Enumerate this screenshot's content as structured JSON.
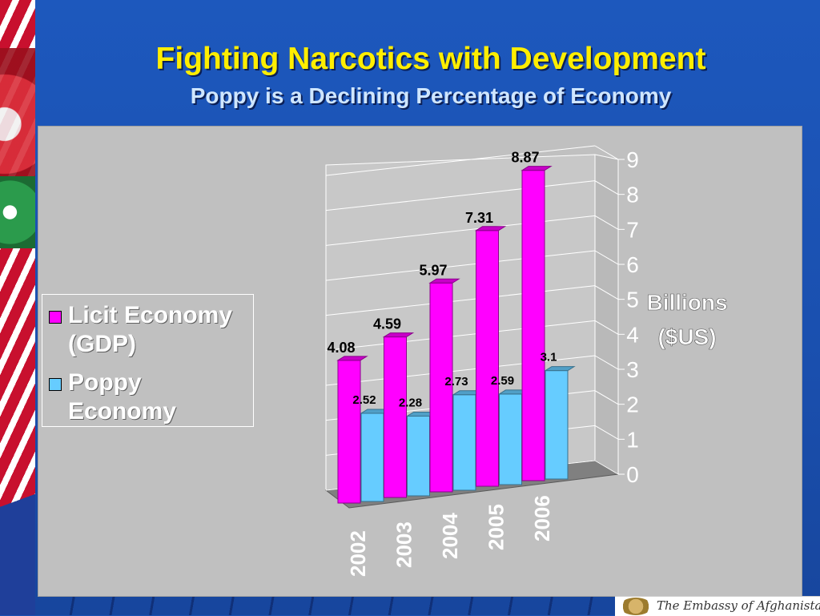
{
  "slide": {
    "title": "Fighting Narcotics with Development",
    "subtitle": "Poppy is a Declining Percentage of Economy",
    "footer_text": "The Embassy of Afghanistan"
  },
  "legend": {
    "items": [
      {
        "label": "Licit Economy (GDP)",
        "color": "#ff00ff"
      },
      {
        "label": "Poppy Economy",
        "color": "#66ccff"
      }
    ]
  },
  "chart_data": {
    "type": "bar",
    "categories": [
      "2002",
      "2003",
      "2004",
      "2005",
      "2006"
    ],
    "series": [
      {
        "name": "Licit Economy (GDP)",
        "values": [
          4.08,
          4.59,
          5.97,
          7.31,
          8.87
        ],
        "color": "#ff00ff"
      },
      {
        "name": "Poppy Economy",
        "values": [
          2.52,
          2.28,
          2.73,
          2.59,
          3.1
        ],
        "color": "#66ccff"
      }
    ],
    "ylabel": "Billions ($US)",
    "ylim": [
      0,
      9
    ],
    "yticks": [
      0,
      1,
      2,
      3,
      4,
      5,
      6,
      7,
      8,
      9
    ],
    "grid": true,
    "legend_position": "left",
    "style": "3d-clustered-column"
  }
}
